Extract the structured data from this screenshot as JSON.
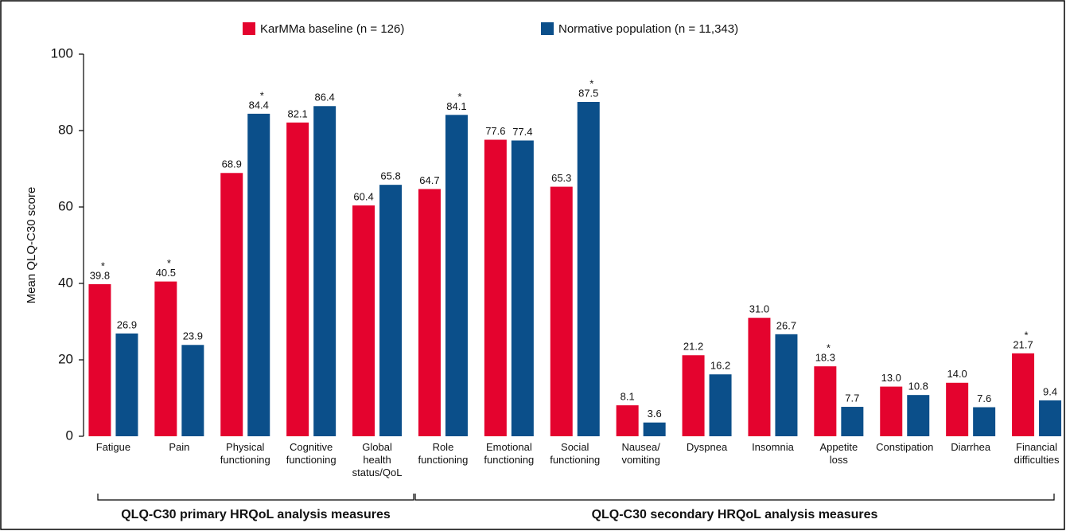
{
  "chart_data": {
    "type": "bar",
    "y_label": "Mean QLQ-C30 score",
    "categories": [
      "Fatigue",
      "Pain",
      "Physical\nfunctioning",
      "Cognitive\nfunctioning",
      "Global\nhealth\nstatus/QoL",
      "Role\nfunctioning",
      "Emotional\nfunctioning",
      "Social\nfunctioning",
      "Nausea/\nvomiting",
      "Dyspnea",
      "Insomnia",
      "Appetite\nloss",
      "Constipation",
      "Diarrhea",
      "Financial\ndifficulties"
    ],
    "series": [
      {
        "name": "KarMMa baseline (n = 126)",
        "color": "#e4032e",
        "values": [
          39.8,
          40.5,
          68.9,
          82.1,
          60.4,
          64.7,
          77.6,
          65.3,
          8.1,
          21.2,
          31.0,
          18.3,
          13.0,
          14.0,
          21.7
        ],
        "value_labels": [
          "39.8",
          "40.5",
          "68.9",
          "82.1",
          "60.4",
          "64.7",
          "77.6",
          "65.3",
          "8.1",
          "21.2",
          "31.0",
          "18.3",
          "13.0",
          "14.0",
          "21.7"
        ],
        "notes": [
          "*",
          "*",
          null,
          null,
          null,
          null,
          null,
          null,
          null,
          null,
          null,
          "*",
          null,
          null,
          "*"
        ]
      },
      {
        "name": "Normative population (n = 11,343)",
        "color": "#0b4f8a",
        "values": [
          26.9,
          23.9,
          84.4,
          86.4,
          65.8,
          84.1,
          77.4,
          87.5,
          3.6,
          16.2,
          26.7,
          7.7,
          10.8,
          7.6,
          9.4
        ],
        "value_labels": [
          "26.9",
          "23.9",
          "84.4",
          "86.4",
          "65.8",
          "84.1",
          "77.4",
          "87.5",
          "3.6",
          "16.2",
          "26.7",
          "7.7",
          "10.8",
          "7.6",
          "9.4"
        ],
        "notes": [
          null,
          null,
          "*",
          null,
          null,
          "*",
          null,
          "*",
          null,
          null,
          null,
          null,
          null,
          null,
          null
        ]
      }
    ],
    "groups": [
      {
        "label": "QLQ-C30 primary HRQoL analysis measures"
      },
      {
        "label": "QLQ-C30 secondary HRQoL analysis measures"
      }
    ],
    "ylim": [
      0,
      100
    ],
    "yticks": [
      0,
      20,
      40,
      60,
      80,
      100
    ],
    "grid": false
  }
}
